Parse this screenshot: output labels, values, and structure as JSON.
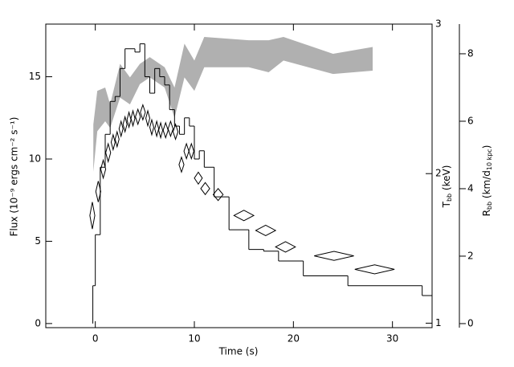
{
  "chart_data": {
    "type": "step",
    "xlabel": "Time (s)",
    "ylabel": "Flux (10⁻⁹ ergs cm⁻² s⁻¹)",
    "y2label": [
      "T",
      "bb",
      " (keV)"
    ],
    "y3label": [
      "R",
      "bb",
      " (km/d",
      "10 kpc",
      ")"
    ],
    "xlim": [
      -5,
      34
    ],
    "xticks": [
      0,
      10,
      20,
      30
    ],
    "ylim": [
      -0.25,
      18.2
    ],
    "yticks": [
      0,
      5,
      10,
      15
    ],
    "y2lim": [
      0.97,
      3
    ],
    "y2ticks": [
      1,
      2,
      3
    ],
    "y3lim": [
      -0.12,
      8.88
    ],
    "y3ticks": [
      0,
      2,
      4,
      6,
      8
    ],
    "flux": {
      "color": "#000000",
      "bins": [
        -0.25,
        0,
        0.5,
        1,
        1.5,
        2,
        2.5,
        3,
        4,
        4.5,
        5,
        5.5,
        6,
        6.5,
        7,
        7.5,
        8,
        8.5,
        9,
        9.5,
        10,
        10.5,
        11,
        12,
        13.5,
        15.5,
        17,
        18.5,
        21,
        25.5,
        33,
        34
      ],
      "values": [
        2.3,
        5.4,
        9.5,
        11.5,
        13.5,
        13.8,
        15.5,
        16.7,
        16.5,
        17,
        15,
        14,
        15.5,
        15,
        14.5,
        13,
        12,
        11.5,
        12.5,
        12,
        10,
        10.5,
        9.5,
        7.7,
        5.7,
        4.5,
        4.4,
        3.8,
        2.9,
        2.3,
        1.7
      ]
    },
    "radius": {
      "type": "band",
      "axis": "y3",
      "color": "#b0b0b0",
      "x": [
        -0.2,
        0.2,
        1,
        1.5,
        2.5,
        3.5,
        4.5,
        5.5,
        7,
        8,
        9,
        10,
        11,
        15.5,
        17.5,
        19,
        24,
        28
      ],
      "upper": [
        5.9,
        6.9,
        7.0,
        6.5,
        7.7,
        7.3,
        7.7,
        7.9,
        7.6,
        7.0,
        8.3,
        7.8,
        8.5,
        8.4,
        8.4,
        8.5,
        8.0,
        8.2
      ],
      "lower": [
        4.5,
        5.7,
        6.0,
        5.8,
        6.7,
        6.5,
        7.1,
        7.3,
        7.0,
        6.1,
        7.3,
        6.9,
        7.6,
        7.6,
        7.45,
        7.8,
        7.4,
        7.5
      ]
    },
    "temperature": {
      "type": "diamond",
      "axis": "y2",
      "color": "#000000",
      "x": [
        -0.3,
        0.3,
        0.8,
        1.3,
        1.8,
        2.2,
        2.6,
        3.0,
        3.4,
        3.8,
        4.3,
        4.8,
        5.3,
        5.7,
        6.2,
        6.6,
        7.1,
        7.6,
        8.1,
        8.7,
        9.2,
        9.7,
        10.4,
        11.1,
        12.4,
        15,
        17.2,
        19.2,
        24.1,
        28.2
      ],
      "xerr": [
        0.25,
        0.25,
        0.25,
        0.25,
        0.2,
        0.2,
        0.2,
        0.2,
        0.2,
        0.2,
        0.25,
        0.25,
        0.2,
        0.2,
        0.2,
        0.2,
        0.25,
        0.25,
        0.25,
        0.25,
        0.25,
        0.25,
        0.4,
        0.45,
        0.5,
        1,
        1,
        1,
        2,
        2
      ],
      "values": [
        1.72,
        1.88,
        2.03,
        2.14,
        2.21,
        2.23,
        2.3,
        2.33,
        2.36,
        2.37,
        2.38,
        2.41,
        2.37,
        2.31,
        2.3,
        2.29,
        2.29,
        2.3,
        2.28,
        2.06,
        2.15,
        2.15,
        1.97,
        1.9,
        1.86,
        1.72,
        1.62,
        1.51,
        1.45,
        1.36
      ],
      "yerr": [
        0.09,
        0.07,
        0.06,
        0.06,
        0.05,
        0.05,
        0.05,
        0.05,
        0.05,
        0.05,
        0.05,
        0.05,
        0.05,
        0.05,
        0.05,
        0.05,
        0.05,
        0.05,
        0.05,
        0.05,
        0.05,
        0.05,
        0.04,
        0.04,
        0.04,
        0.035,
        0.035,
        0.035,
        0.03,
        0.03
      ]
    }
  }
}
